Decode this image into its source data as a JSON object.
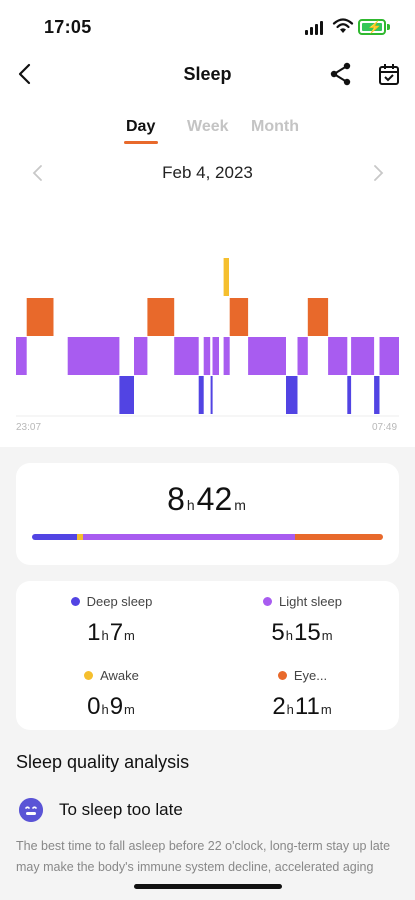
{
  "status_bar": {
    "time": "17:05"
  },
  "header": {
    "title": "Sleep",
    "back_icon": "chevron-left-icon",
    "share_icon": "share-icon",
    "calendar_icon": "calendar-check-icon"
  },
  "tabs": [
    {
      "label": "Day",
      "active": true
    },
    {
      "label": "Week",
      "active": false
    },
    {
      "label": "Month",
      "active": false
    }
  ],
  "date": {
    "label": "Feb 4, 2023",
    "prev_icon": "chevron-left-icon",
    "next_icon": "chevron-right-icon"
  },
  "colors": {
    "deep": "#5244e3",
    "light": "#a85cf0",
    "awake": "#f5bf2e",
    "eye": "#e8692b",
    "accent": "#e8692b"
  },
  "chart": {
    "start_label": "23:07",
    "end_label": "07:49",
    "timeline": [
      {
        "stage": "light",
        "start": 0.0,
        "end": 0.028
      },
      {
        "stage": "eye",
        "start": 0.028,
        "end": 0.098
      },
      {
        "stage": "light",
        "start": 0.135,
        "end": 0.27
      },
      {
        "stage": "deep",
        "start": 0.27,
        "end": 0.308
      },
      {
        "stage": "light",
        "start": 0.308,
        "end": 0.343
      },
      {
        "stage": "eye",
        "start": 0.343,
        "end": 0.413
      },
      {
        "stage": "light",
        "start": 0.413,
        "end": 0.477
      },
      {
        "stage": "deep",
        "start": 0.477,
        "end": 0.49
      },
      {
        "stage": "light",
        "start": 0.49,
        "end": 0.507
      },
      {
        "stage": "deep",
        "start": 0.508,
        "end": 0.513
      },
      {
        "stage": "light",
        "start": 0.513,
        "end": 0.53
      },
      {
        "stage": "awake",
        "start": 0.542,
        "end": 0.556
      },
      {
        "stage": "light",
        "start": 0.542,
        "end": 0.558
      },
      {
        "stage": "eye",
        "start": 0.558,
        "end": 0.606
      },
      {
        "stage": "light",
        "start": 0.606,
        "end": 0.705
      },
      {
        "stage": "deep",
        "start": 0.705,
        "end": 0.735
      },
      {
        "stage": "light",
        "start": 0.735,
        "end": 0.762
      },
      {
        "stage": "eye",
        "start": 0.762,
        "end": 0.815
      },
      {
        "stage": "light",
        "start": 0.815,
        "end": 0.865
      },
      {
        "stage": "deep",
        "start": 0.865,
        "end": 0.875
      },
      {
        "stage": "light",
        "start": 0.875,
        "end": 0.935
      },
      {
        "stage": "deep",
        "start": 0.935,
        "end": 0.949
      },
      {
        "stage": "light",
        "start": 0.949,
        "end": 1.0
      }
    ]
  },
  "summary": {
    "hours": "8",
    "h_unit": "h",
    "minutes": "42",
    "m_unit": "m",
    "share": {
      "deep": 67,
      "awake": 9,
      "light": 315,
      "eye": 131
    }
  },
  "stats": {
    "deep": {
      "label": "Deep sleep",
      "hours": "1",
      "minutes": "7"
    },
    "light": {
      "label": "Light sleep",
      "hours": "5",
      "minutes": "15"
    },
    "awake": {
      "label": "Awake",
      "hours": "0",
      "minutes": "9"
    },
    "eye": {
      "label": "Eye...",
      "hours": "2",
      "minutes": "11"
    },
    "h_unit": "h",
    "m_unit": "m"
  },
  "analysis": {
    "section_title": "Sleep quality analysis",
    "item_title": "To sleep too late",
    "item_icon": "sleep-face-icon",
    "item_desc": "The best time to fall asleep before 22 o'clock, long-term stay up late may make the body's immune system decline, accelerated aging"
  }
}
